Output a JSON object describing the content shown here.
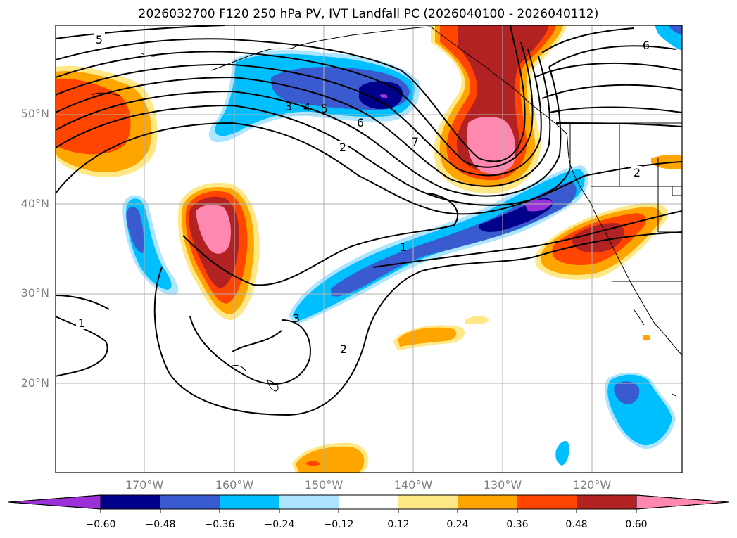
{
  "title": "2026032700 F120 250 hPa PV, IVT Landfall PC (2026040100 - 2026040112)",
  "lat_labels": [
    "50°N",
    "40°N",
    "30°N",
    "20°N"
  ],
  "lon_labels": [
    "170°W",
    "160°W",
    "150°W",
    "140°W",
    "130°W",
    "120°W"
  ],
  "contour_labels": [
    "5",
    "6",
    "3",
    "4",
    "5",
    "6",
    "7",
    "2",
    "2",
    "1",
    "1",
    "3",
    "2"
  ],
  "colorbar": {
    "ticks": [
      "−0.60",
      "−0.48",
      "−0.36",
      "−0.24",
      "−0.12",
      "0.12",
      "0.24",
      "0.36",
      "0.48",
      "0.60"
    ],
    "colors": [
      "#9b30d8",
      "#00008b",
      "#3a5bd0",
      "#00bfff",
      "#ade4ff",
      "#ffffff",
      "#ffe885",
      "#ffa500",
      "#ff4500",
      "#b22222",
      "#ff88b0"
    ]
  },
  "colors": {
    "neg_strong": "#00008b",
    "neg_mid": "#3a5bd0",
    "neg_light": "#00bfff",
    "neg_faint": "#ade4ff",
    "pos_faint": "#ffe885",
    "pos_light": "#ffa500",
    "pos_mid": "#ff4500",
    "pos_strong": "#b22222",
    "pos_max": "#ff88b0",
    "purple": "#9b30d8"
  }
}
